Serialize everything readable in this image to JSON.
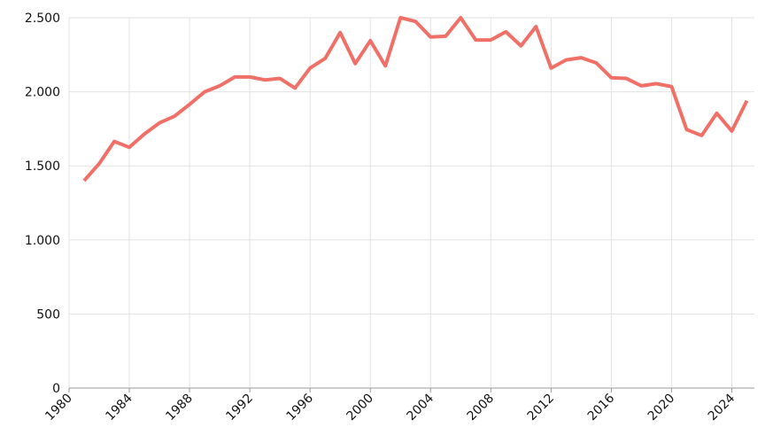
{
  "chart_data": {
    "type": "line",
    "x": [
      1981,
      1982,
      1983,
      1984,
      1985,
      1986,
      1987,
      1988,
      1989,
      1990,
      1991,
      1992,
      1993,
      1994,
      1995,
      1996,
      1997,
      1998,
      1999,
      2000,
      2001,
      2002,
      2003,
      2004,
      2005,
      2006,
      2007,
      2008,
      2009,
      2010,
      2011,
      2012,
      2013,
      2014,
      2015,
      2016,
      2017,
      2018,
      2019,
      2020,
      2021,
      2022,
      2023,
      2024,
      2025
    ],
    "series": [
      {
        "color": "#f07067",
        "values": [
          1400,
          1515,
          1665,
          1625,
          1715,
          1790,
          1835,
          1915,
          2000,
          2040,
          2100,
          2100,
          2080,
          2090,
          2025,
          2160,
          2225,
          2400,
          2190,
          2345,
          2175,
          2500,
          2475,
          2370,
          2375,
          2500,
          2350,
          2350,
          2405,
          2310,
          2440,
          2160,
          2215,
          2230,
          2195,
          2095,
          2090,
          2040,
          2055,
          2035,
          1745,
          1705,
          1855,
          1735,
          1940
        ]
      }
    ],
    "xlim": [
      1980,
      2025.5
    ],
    "xticks": [
      1980,
      1984,
      1988,
      1992,
      1996,
      2000,
      2004,
      2008,
      2012,
      2016,
      2020,
      2024
    ],
    "ylim": [
      0,
      2500
    ],
    "yticks": [
      0,
      500,
      {
        "value": 1000,
        "label": "1.000"
      },
      {
        "value": 1500,
        "label": "1.500"
      },
      {
        "value": 2000,
        "label": "2.000"
      },
      {
        "value": 2500,
        "label": "2.500"
      }
    ],
    "grid": true
  }
}
